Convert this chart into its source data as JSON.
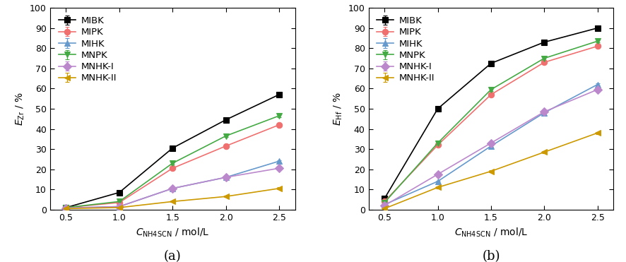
{
  "x": [
    0.5,
    1.0,
    1.5,
    2.0,
    2.5
  ],
  "panel_a": {
    "ylabel": "$E_{\\rm Zr}$ / %",
    "series": [
      {
        "name": "MIBK",
        "y": [
          1.0,
          8.5,
          30.5,
          44.5,
          57.0
        ],
        "yerr": [
          0.3,
          0.4,
          0.5,
          0.6,
          0.7
        ],
        "color": "#000000",
        "marker": "s"
      },
      {
        "name": "MIPK",
        "y": [
          1.0,
          3.5,
          20.5,
          31.5,
          42.0
        ],
        "yerr": [
          0.2,
          0.3,
          0.5,
          0.6,
          0.6
        ],
        "color": "#f07070",
        "marker": "o"
      },
      {
        "name": "MIHK",
        "y": [
          0.8,
          1.5,
          10.5,
          16.0,
          24.0
        ],
        "yerr": [
          0.2,
          0.2,
          0.4,
          0.5,
          0.5
        ],
        "color": "#6699cc",
        "marker": "^"
      },
      {
        "name": "MNPK",
        "y": [
          1.0,
          4.0,
          23.0,
          36.5,
          46.5
        ],
        "yerr": [
          0.2,
          0.3,
          0.5,
          0.6,
          0.6
        ],
        "color": "#44aa44",
        "marker": "v"
      },
      {
        "name": "MNHK-I",
        "y": [
          0.8,
          1.5,
          10.5,
          16.0,
          20.5
        ],
        "yerr": [
          0.2,
          0.2,
          0.4,
          0.5,
          0.5
        ],
        "color": "#bb88cc",
        "marker": "D"
      },
      {
        "name": "MNHK-II",
        "y": [
          0.5,
          1.0,
          4.0,
          6.5,
          10.5
        ],
        "yerr": [
          0.2,
          0.2,
          0.3,
          0.4,
          0.5
        ],
        "color": "#cc9900",
        "marker": "<"
      }
    ]
  },
  "panel_b": {
    "ylabel": "$E_{\\rm Hf}$ / %",
    "series": [
      {
        "name": "MIBK",
        "y": [
          5.5,
          50.0,
          72.5,
          83.0,
          90.0
        ],
        "yerr": [
          0.4,
          0.6,
          0.7,
          0.8,
          0.8
        ],
        "color": "#000000",
        "marker": "s"
      },
      {
        "name": "MIPK",
        "y": [
          4.0,
          32.0,
          57.0,
          73.0,
          81.0
        ],
        "yerr": [
          0.3,
          0.5,
          0.6,
          0.7,
          0.7
        ],
        "color": "#f07070",
        "marker": "o"
      },
      {
        "name": "MIHK",
        "y": [
          2.5,
          14.0,
          31.5,
          48.0,
          62.0
        ],
        "yerr": [
          0.3,
          0.4,
          0.5,
          0.6,
          0.6
        ],
        "color": "#6699cc",
        "marker": "^"
      },
      {
        "name": "MNPK",
        "y": [
          3.5,
          33.0,
          59.5,
          75.0,
          83.5
        ],
        "yerr": [
          0.3,
          0.5,
          0.6,
          0.7,
          0.7
        ],
        "color": "#44aa44",
        "marker": "v"
      },
      {
        "name": "MNHK-I",
        "y": [
          2.0,
          17.5,
          33.0,
          48.5,
          59.5
        ],
        "yerr": [
          0.3,
          0.4,
          0.5,
          0.6,
          0.6
        ],
        "color": "#bb88cc",
        "marker": "D"
      },
      {
        "name": "MNHK-II",
        "y": [
          0.5,
          11.0,
          19.0,
          28.5,
          38.0
        ],
        "yerr": [
          0.2,
          0.4,
          0.5,
          0.5,
          0.6
        ],
        "color": "#cc9900",
        "marker": "<"
      }
    ]
  },
  "xlabel": "$C_{\\rm NH4SCN}$ / mol/L",
  "ylim": [
    0,
    100
  ],
  "yticks": [
    0,
    10,
    20,
    30,
    40,
    50,
    60,
    70,
    80,
    90,
    100
  ],
  "xticks": [
    0.5,
    1.0,
    1.5,
    2.0,
    2.5
  ],
  "xticklabels": [
    "0.5",
    "1.0",
    "1.5",
    "2.0",
    "2.5"
  ],
  "panel_labels": [
    "(a)",
    "(b)"
  ],
  "legend_fontsize": 9.5,
  "tick_fontsize": 9,
  "label_fontsize": 10,
  "panel_label_fontsize": 13,
  "marker_size": 6,
  "linewidth": 1.2,
  "capsize": 2.5,
  "elinewidth": 0.9,
  "xlim": [
    0.35,
    2.65
  ]
}
